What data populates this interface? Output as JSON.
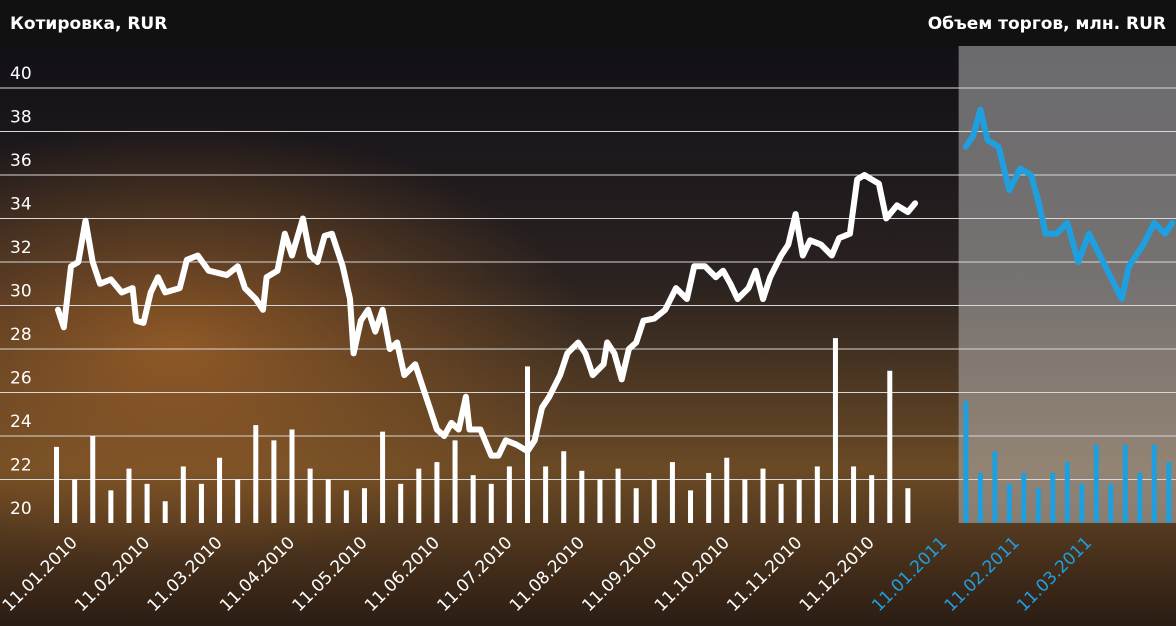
{
  "chart_data": {
    "type": "line",
    "title": "Котировка,  RUR",
    "title_right": "Объем торгов, млн. RUR",
    "xlim": [
      -1.03,
      15.2
    ],
    "xticks": [
      {
        "value": 0,
        "label": "11.01.2010"
      },
      {
        "value": 1,
        "label": "11.02.2010"
      },
      {
        "value": 2,
        "label": "11.03.2010"
      },
      {
        "value": 3,
        "label": "11.04.2010"
      },
      {
        "value": 4,
        "label": "11.05.2010"
      },
      {
        "value": 5,
        "label": "11.06.2010"
      },
      {
        "value": 6,
        "label": "11.07.2010"
      },
      {
        "value": 7,
        "label": "11.08.2010"
      },
      {
        "value": 8,
        "label": "11.09.2010"
      },
      {
        "value": 9,
        "label": "11.10.2010"
      },
      {
        "value": 10,
        "label": "11.11.2010"
      },
      {
        "value": 11,
        "label": "11.12.2010"
      },
      {
        "value": 12,
        "label": "11.01.2011"
      },
      {
        "value": 13,
        "label": "11.02.2011"
      },
      {
        "value": 14,
        "label": "11.03.2011"
      }
    ],
    "ylim": [
      20,
      40
    ],
    "yticks": [
      20,
      22,
      24,
      26,
      28,
      30,
      32,
      34,
      36,
      38,
      40
    ],
    "grid": true,
    "panel_xlim": [
      12.2,
      15.2
    ],
    "panel_color": "#1ea0e0",
    "series": [
      {
        "color": "#ffffff",
        "x": [
          -0.23,
          -0.15,
          -0.05,
          0.05,
          0.15,
          0.25,
          0.35,
          0.5,
          0.65,
          0.8,
          0.85,
          0.95,
          1.05,
          1.15,
          1.25,
          1.45,
          1.55,
          1.7,
          1.85,
          2.1,
          2.25,
          2.35,
          2.5,
          2.6,
          2.65,
          2.8,
          2.9,
          3.0,
          3.15,
          3.25,
          3.35,
          3.45,
          3.55,
          3.7,
          3.8,
          3.85,
          3.95,
          4.05,
          4.15,
          4.25,
          4.35,
          4.45,
          4.55,
          4.7,
          4.8,
          4.9,
          5.0,
          5.1,
          5.2,
          5.3,
          5.4,
          5.45,
          5.6,
          5.75,
          5.85,
          5.95,
          6.1,
          6.25,
          6.35,
          6.45,
          6.55,
          6.7,
          6.8,
          6.95,
          7.05,
          7.15,
          7.3,
          7.35,
          7.45,
          7.55,
          7.65,
          7.75,
          7.85,
          8.0,
          8.15,
          8.3,
          8.45,
          8.55,
          8.7,
          8.85,
          8.95,
          9.05,
          9.15,
          9.3,
          9.4,
          9.5,
          9.6,
          9.75,
          9.85,
          9.95,
          10.05,
          10.15,
          10.3,
          10.45,
          10.55,
          10.7,
          10.8,
          10.9,
          11.0,
          11.1,
          11.2,
          11.35,
          11.5,
          11.6
        ],
        "values": [
          29.8,
          29.0,
          31.8,
          32.0,
          33.9,
          32.0,
          31.0,
          31.2,
          30.6,
          30.8,
          29.3,
          29.2,
          30.6,
          31.3,
          30.6,
          30.8,
          32.1,
          32.3,
          31.6,
          31.4,
          31.8,
          30.8,
          30.3,
          29.8,
          31.3,
          31.6,
          33.3,
          32.3,
          34.0,
          32.3,
          32.0,
          33.2,
          33.3,
          31.8,
          30.3,
          27.8,
          29.3,
          29.8,
          28.8,
          29.8,
          28.0,
          28.3,
          26.8,
          27.3,
          26.3,
          25.3,
          24.3,
          24.0,
          24.6,
          24.3,
          25.8,
          24.3,
          24.3,
          23.1,
          23.1,
          23.8,
          23.6,
          23.3,
          23.8,
          25.3,
          25.8,
          26.8,
          27.8,
          28.3,
          27.8,
          26.8,
          27.3,
          28.3,
          27.8,
          26.6,
          28.0,
          28.3,
          29.3,
          29.4,
          29.8,
          30.8,
          30.3,
          31.8,
          31.8,
          31.3,
          31.6,
          31.0,
          30.3,
          30.8,
          31.6,
          30.3,
          31.3,
          32.3,
          32.8,
          34.2,
          32.3,
          33.0,
          32.8,
          32.3,
          33.1,
          33.3,
          35.8,
          36.0,
          35.8,
          35.6,
          34.0,
          34.6,
          34.3,
          34.7
        ]
      },
      {
        "color": "#1ea0e0",
        "x": [
          12.3,
          12.4,
          12.5,
          12.6,
          12.75,
          12.9,
          13.05,
          13.2,
          13.3,
          13.4,
          13.55,
          13.7,
          13.85,
          14.0,
          14.15,
          14.3,
          14.45,
          14.55,
          14.75,
          14.9,
          15.05,
          15.15
        ],
        "values": [
          37.3,
          37.8,
          39.0,
          37.6,
          37.3,
          35.3,
          36.3,
          36.0,
          34.8,
          33.3,
          33.3,
          33.8,
          32.0,
          33.3,
          32.3,
          31.3,
          30.3,
          31.8,
          32.8,
          33.8,
          33.3,
          33.8
        ]
      }
    ],
    "volume": [
      {
        "color": "#ffffff",
        "x": [
          -0.25,
          0,
          0.25,
          0.5,
          0.75,
          1,
          1.25,
          1.5,
          1.75,
          2,
          2.25,
          2.5,
          2.75,
          3,
          3.25,
          3.5,
          3.75,
          4,
          4.25,
          4.5,
          4.75,
          5,
          5.25,
          5.5,
          5.75,
          6,
          6.25,
          6.5,
          6.75,
          7,
          7.25,
          7.5,
          7.75,
          8,
          8.25,
          8.5,
          8.75,
          9,
          9.25,
          9.5,
          9.75,
          10,
          10.25,
          10.5,
          10.75,
          11,
          11.25,
          11.5
        ],
        "values": [
          23.5,
          22.0,
          24.0,
          21.5,
          22.5,
          21.8,
          21.0,
          22.6,
          21.8,
          23.0,
          22.0,
          24.5,
          23.8,
          24.3,
          22.5,
          22.0,
          21.5,
          21.6,
          24.2,
          21.8,
          22.5,
          22.8,
          23.8,
          22.2,
          21.8,
          22.6,
          27.2,
          22.6,
          23.3,
          22.4,
          22.0,
          22.5,
          21.6,
          22.0,
          22.8,
          21.5,
          22.3,
          23.0,
          22.0,
          22.5,
          21.8,
          22.0,
          22.6,
          28.5,
          22.6,
          22.2,
          27.0,
          21.6
        ]
      },
      {
        "color": "#1ea0e0",
        "x": [
          12.3,
          12.5,
          12.7,
          12.9,
          13.1,
          13.3,
          13.5,
          13.7,
          13.9,
          14.1,
          14.3,
          14.5,
          14.7,
          14.9,
          15.1
        ],
        "values": [
          25.6,
          22.3,
          23.3,
          21.8,
          22.3,
          21.6,
          22.3,
          22.8,
          21.8,
          23.6,
          21.8,
          23.6,
          22.3,
          23.6,
          22.8
        ]
      }
    ]
  }
}
